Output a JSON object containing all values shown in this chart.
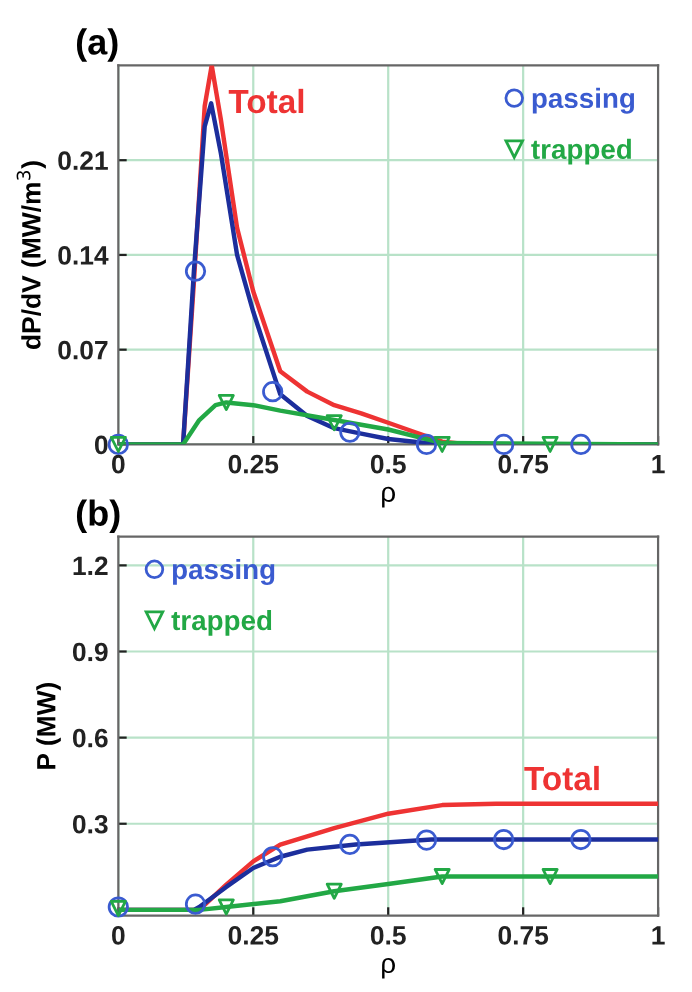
{
  "chart_data": [
    {
      "type": "line",
      "title": "(a)",
      "xlabel": "ρ",
      "ylabel": "dP/dV (MW/m$^{3}$)",
      "xlim": [
        0,
        1
      ],
      "ylim": [
        0,
        0.28
      ],
      "xticks": [
        0,
        0.25,
        0.5,
        0.75,
        1
      ],
      "yticks": [
        0,
        0.07,
        0.14,
        0.21
      ],
      "grid": true,
      "legend": "top right",
      "series": [
        {
          "name": "Total",
          "color": "#ee3333",
          "x": [
            0,
            0.12,
            0.14,
            0.16,
            0.173,
            0.19,
            0.22,
            0.25,
            0.3,
            0.35,
            0.4,
            0.45,
            0.5,
            0.55,
            0.6,
            0.65,
            1
          ],
          "values": [
            0,
            0,
            0.12,
            0.25,
            0.28,
            0.24,
            0.16,
            0.113,
            0.054,
            0.039,
            0.029,
            0.023,
            0.016,
            0.009,
            0.002,
            0,
            0
          ]
        },
        {
          "color": "#1c2e9c",
          "x": [
            0,
            0.12,
            0.14,
            0.16,
            0.172,
            0.19,
            0.22,
            0.25,
            0.3,
            0.35,
            0.4,
            0.45,
            0.5,
            0.57,
            0.6,
            1
          ],
          "values": [
            0,
            0,
            0.128,
            0.235,
            0.252,
            0.215,
            0.14,
            0.098,
            0.037,
            0.021,
            0.012,
            0.008,
            0.004,
            0.001,
            0,
            0
          ]
        },
        {
          "color": "#22a845",
          "x": [
            0,
            0.12,
            0.15,
            0.18,
            0.2,
            0.25,
            0.3,
            0.4,
            0.5,
            0.6,
            1
          ],
          "values": [
            0,
            0,
            0.018,
            0.029,
            0.031,
            0.029,
            0.025,
            0.018,
            0.011,
            0.001,
            0
          ]
        },
        {
          "type": "scatter",
          "name": "passing",
          "marker": "circle",
          "color": "#3a5bd0",
          "x": [
            0,
            0.143,
            0.286,
            0.429,
            0.571,
            0.714,
            0.857
          ],
          "values": [
            0,
            0.128,
            0.039,
            0.009,
            0,
            0,
            0
          ]
        },
        {
          "type": "scatter",
          "name": "trapped",
          "marker": "triangle",
          "color": "#22a845",
          "x": [
            0,
            0.2,
            0.4,
            0.6,
            0.8
          ],
          "values": [
            0,
            0.031,
            0.016,
            0,
            0
          ]
        }
      ]
    },
    {
      "type": "line",
      "title": "(b)",
      "xlabel": "ρ",
      "ylabel": "P (MW)",
      "xlim": [
        0,
        1
      ],
      "ylim": [
        -0.02,
        1.3
      ],
      "xticks": [
        0,
        0.25,
        0.5,
        0.75,
        1
      ],
      "yticks": [
        0.3,
        0.6,
        0.9,
        1.2
      ],
      "grid": true,
      "legend": "top left",
      "series": [
        {
          "name": "Total",
          "color": "#ee3333",
          "x": [
            0,
            0.15,
            0.2,
            0.25,
            0.3,
            0.4,
            0.5,
            0.6,
            0.7,
            1
          ],
          "values": [
            0,
            0,
            0.088,
            0.169,
            0.227,
            0.285,
            0.335,
            0.365,
            0.37,
            0.37
          ]
        },
        {
          "color": "#1c2e9c",
          "x": [
            0,
            0.14,
            0.15,
            0.2,
            0.25,
            0.3,
            0.35,
            0.44,
            0.58,
            1
          ],
          "values": [
            0,
            0,
            0.01,
            0.08,
            0.146,
            0.185,
            0.21,
            0.228,
            0.245,
            0.245
          ]
        },
        {
          "color": "#22a845",
          "x": [
            0,
            0.15,
            0.2,
            0.3,
            0.4,
            0.5,
            0.6,
            1
          ],
          "values": [
            0,
            0,
            0.01,
            0.03,
            0.065,
            0.09,
            0.116,
            0.116
          ]
        },
        {
          "type": "scatter",
          "name": "passing",
          "marker": "circle",
          "color": "#3a5bd0",
          "x": [
            0,
            0.143,
            0.286,
            0.429,
            0.571,
            0.714,
            0.857
          ],
          "values": [
            0.01,
            0.02,
            0.185,
            0.228,
            0.243,
            0.245,
            0.245
          ]
        },
        {
          "type": "scatter",
          "name": "trapped",
          "marker": "triangle",
          "color": "#22a845",
          "x": [
            0,
            0.2,
            0.4,
            0.6,
            0.8
          ],
          "values": [
            0.005,
            0.01,
            0.065,
            0.116,
            0.116
          ]
        }
      ]
    }
  ]
}
